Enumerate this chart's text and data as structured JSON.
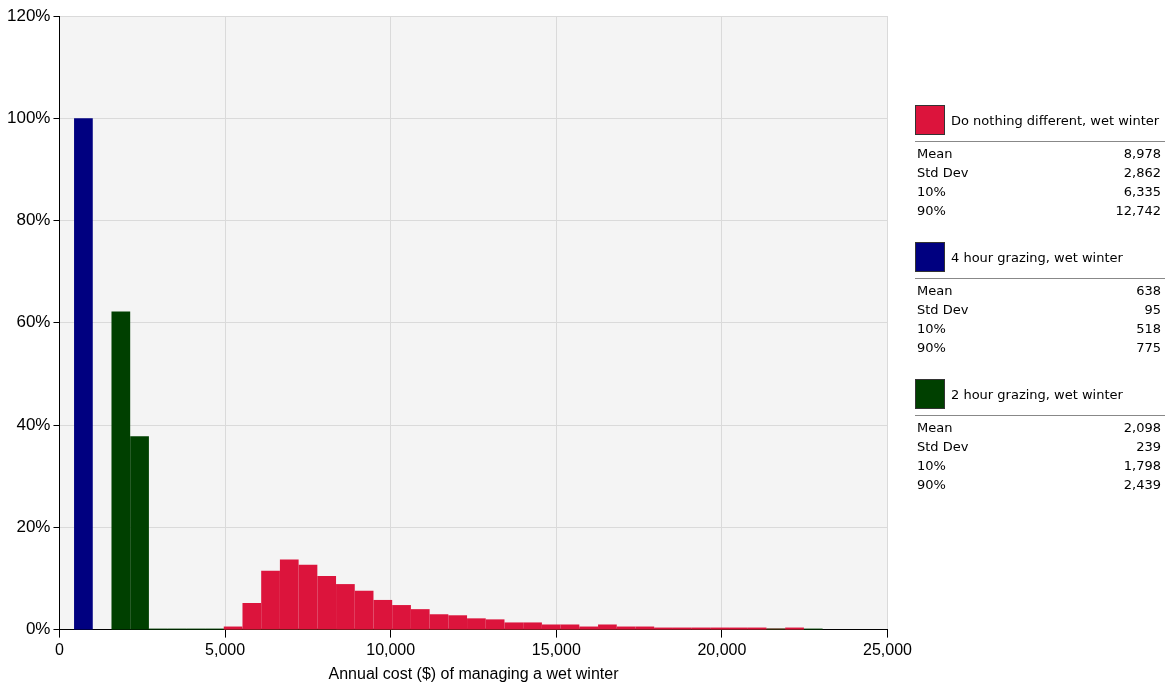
{
  "chart_data": {
    "type": "histogram",
    "xlabel": "Annual cost ($) of managing a wet winter",
    "bins": [
      440,
      1005,
      1570,
      2135,
      2700,
      3265,
      3830,
      4395,
      4960,
      5525,
      6090,
      6655,
      7220,
      7785,
      8350,
      8915,
      9480,
      10045,
      10610,
      11175,
      11740,
      12305,
      12870,
      13435,
      14000,
      14565,
      15130,
      15695,
      16260,
      16825,
      17390,
      17955,
      18520,
      19085,
      19650,
      20215,
      20780,
      21345,
      21910,
      22475,
      23040
    ],
    "series": [
      {
        "name": "Do nothing different, wet winter",
        "color": "#dc143c",
        "values": [
          null,
          null,
          null,
          null,
          null,
          null,
          null,
          null,
          0.6,
          5.2,
          11.5,
          13.7,
          12.7,
          10.5,
          8.9,
          7.6,
          5.8,
          4.8,
          4.0,
          3.0,
          2.8,
          2.2,
          2.0,
          1.4,
          1.4,
          1.0,
          1.0,
          0.6,
          1.0,
          0.6,
          0.6,
          0.4,
          0.4,
          0.4,
          0.4,
          0.4,
          0.4,
          0,
          0.4,
          null
        ]
      },
      {
        "name": "4 hour grazing, wet winter",
        "color": "#000080",
        "values": [
          100,
          null,
          null,
          null,
          null,
          null,
          null,
          null,
          null,
          null,
          null,
          null,
          null,
          null,
          null,
          null,
          null,
          null,
          null,
          null,
          null,
          null,
          null,
          null,
          null,
          null,
          null,
          null,
          null,
          null,
          null,
          null,
          null,
          null,
          null,
          null,
          null,
          null,
          null,
          null
        ]
      },
      {
        "name": "2 hour grazing, wet winter",
        "color": "#004000",
        "values": [
          null,
          null,
          62.2,
          37.8,
          0,
          0,
          0,
          0,
          0,
          0,
          0,
          0,
          0,
          0,
          0,
          0,
          0,
          0,
          0,
          0,
          0,
          0,
          0,
          0,
          0,
          0,
          0,
          0,
          0,
          0,
          0,
          0,
          0,
          0,
          0,
          0,
          0,
          0,
          0,
          0
        ]
      }
    ],
    "xlim": [
      0,
      25000
    ],
    "xticks": [
      0,
      {
        "value": 5000,
        "label": "5,000"
      },
      {
        "value": 10000,
        "label": "10,000"
      },
      {
        "value": 15000,
        "label": "15,000"
      },
      {
        "value": 20000,
        "label": "20,000"
      },
      {
        "value": 25000,
        "label": "25,000"
      }
    ],
    "ylim": [
      0,
      120
    ],
    "yticks": [
      {
        "value": 0,
        "label": "0%"
      },
      {
        "value": 20,
        "label": "20%"
      },
      {
        "value": 40,
        "label": "40%"
      },
      {
        "value": 60,
        "label": "60%"
      },
      {
        "value": 80,
        "label": "80%"
      },
      {
        "value": 100,
        "label": "100%"
      },
      {
        "value": 120,
        "label": "120%"
      }
    ],
    "grid": true,
    "legend": "right",
    "annotations": [
      "Mean",
      "8,978",
      "Std Dev",
      "2,862",
      "10%",
      "6,335",
      "90%",
      "12,742",
      "Mean",
      "638",
      "Std Dev",
      "95",
      "10%",
      "518",
      "90%",
      "775",
      "Mean",
      "2,098",
      "Std Dev",
      "239",
      "10%",
      "1,798",
      "90%",
      "2,439"
    ]
  }
}
